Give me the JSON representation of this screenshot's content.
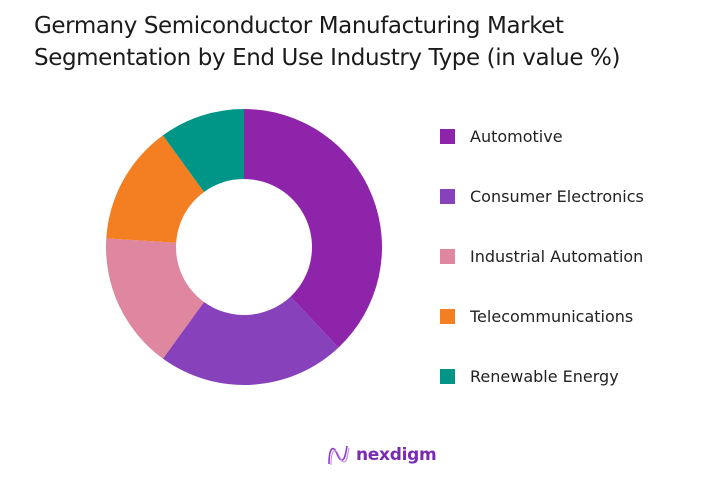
{
  "title_lines": [
    "Germany Semiconductor Manufacturing Market",
    "Segmentation by End Use Industry Type (in value %)"
  ],
  "chart_data": {
    "type": "pie",
    "subtype": "donut",
    "title": "Germany Semiconductor Manufacturing Market Segmentation by End Use Industry Type (in value %)",
    "categories": [
      "Automotive",
      "Consumer Electronics",
      "Industrial Automation",
      "Telecommunications",
      "Renewable Energy"
    ],
    "values": [
      38,
      22,
      16,
      14,
      10
    ],
    "colors": [
      "#8e24aa",
      "#8741bb",
      "#de879f",
      "#f47f22",
      "#009687"
    ],
    "legend_position": "right",
    "unit": "%"
  },
  "legend": {
    "items": [
      {
        "label": "Automotive",
        "color": "#8e24aa"
      },
      {
        "label": "Consumer Electronics",
        "color": "#8741bb"
      },
      {
        "label": "Industrial Automation",
        "color": "#de879f"
      },
      {
        "label": "Telecommunications",
        "color": "#f47f22"
      },
      {
        "label": "Renewable Energy",
        "color": "#009687"
      }
    ]
  },
  "brand": {
    "name": "nexdigm",
    "color": "#7b2bb3"
  }
}
